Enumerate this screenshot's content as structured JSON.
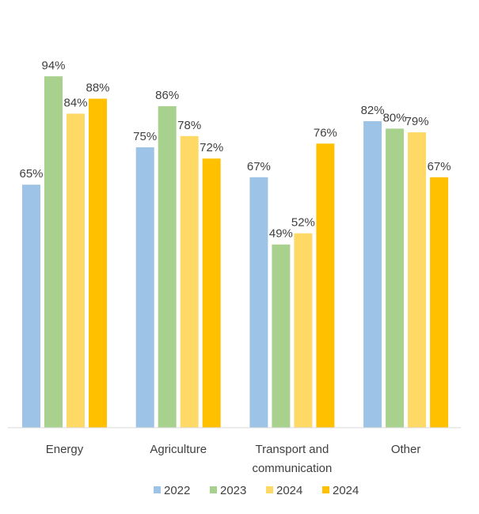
{
  "chart_data": {
    "type": "bar",
    "categories": [
      [
        "Energy"
      ],
      [
        "Agriculture"
      ],
      [
        "Transport and",
        "communication"
      ],
      [
        "Other"
      ]
    ],
    "series": [
      {
        "name": "2022",
        "color": "#9DC3E6",
        "values": [
          65,
          75,
          67,
          82
        ]
      },
      {
        "name": "2023",
        "color": "#A9D18E",
        "values": [
          94,
          86,
          49,
          80
        ]
      },
      {
        "name": "2024",
        "color": "#FFD966",
        "values": [
          84,
          78,
          52,
          79
        ]
      },
      {
        "name": "2024",
        "color": "#FFC000",
        "values": [
          88,
          72,
          76,
          67
        ]
      }
    ],
    "value_suffix": "%",
    "ylim": [
      0,
      100
    ],
    "grid": false,
    "legend": "bottom",
    "title": "",
    "xlabel": "",
    "ylabel": ""
  }
}
